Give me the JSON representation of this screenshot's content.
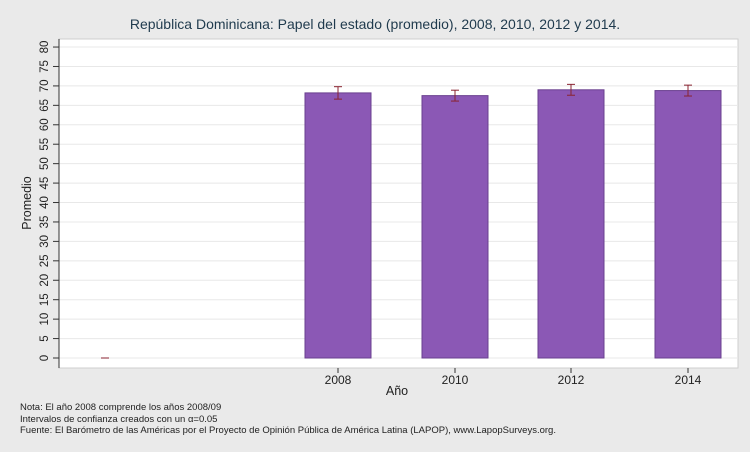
{
  "chart_data": {
    "type": "bar",
    "title": "República Dominicana: Papel del estado (promedio), 2008, 2010, 2012 y 2014.",
    "xlabel": "Año",
    "ylabel": "Promedio",
    "categories": [
      "",
      "2008",
      "2010",
      "2012",
      "2014"
    ],
    "values": [
      0,
      68.2,
      67.5,
      69.0,
      68.8
    ],
    "ci_low": [
      0,
      66.6,
      66.1,
      67.6,
      67.4
    ],
    "ci_high": [
      0,
      69.8,
      68.9,
      70.4,
      70.2
    ],
    "ylim": [
      0,
      82
    ],
    "yticks": [
      "0",
      "5",
      "10",
      "15",
      "20",
      "25",
      "30",
      "35",
      "40",
      "45",
      "50",
      "55",
      "60",
      "65",
      "70",
      "75",
      "80"
    ],
    "grid": true,
    "bar_color": "#8b58b5",
    "bar_edge_color": "#6a3f8f",
    "errorbar_color": "#8a2330",
    "notes": [
      "Nota: El año 2008 comprende los años 2008/09",
      "Intervalos de confianza creados con un α=0.05",
      "Fuente: El Barómetro de las Américas por el Proyecto de Opinión Pública de América Latina (LAPOP), www.LapopSurveys.org."
    ]
  }
}
